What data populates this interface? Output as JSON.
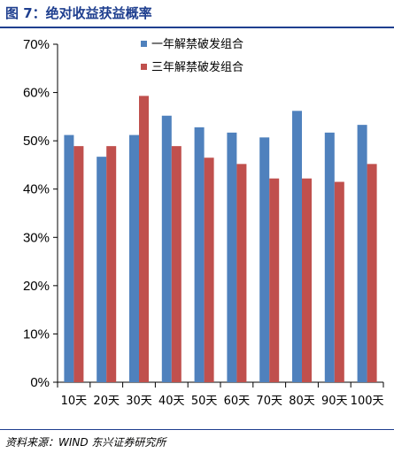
{
  "figure": {
    "title": "图 7：绝对收益获益概率",
    "source": "资料来源：WIND 东兴证券研究所"
  },
  "colors": {
    "series_1": "#4f81bd",
    "series_2": "#c0504d",
    "title": "#1f3f8f",
    "axis": "#000000"
  },
  "chart_data": {
    "type": "bar",
    "title": "",
    "xlabel": "",
    "ylabel": "",
    "categories": [
      "10天",
      "20天",
      "30天",
      "40天",
      "50天",
      "60天",
      "70天",
      "80天",
      "90天",
      "100天"
    ],
    "series": [
      {
        "name": "一年解禁破发组合",
        "color": "#4f81bd",
        "values": [
          51.2,
          46.7,
          51.2,
          55.2,
          52.8,
          51.7,
          50.7,
          56.2,
          51.7,
          53.3
        ]
      },
      {
        "name": "三年解禁破发组合",
        "color": "#c0504d",
        "values": [
          48.9,
          48.9,
          59.3,
          48.9,
          46.5,
          45.2,
          42.2,
          42.2,
          41.5,
          45.2
        ]
      }
    ],
    "ylim": [
      0,
      70
    ],
    "yticks": [
      "0%",
      "10%",
      "20%",
      "30%",
      "40%",
      "50%",
      "60%",
      "70%"
    ],
    "ytick_values": [
      0,
      10,
      20,
      30,
      40,
      50,
      60,
      70
    ],
    "grid": false,
    "legend_position": "top-center"
  }
}
